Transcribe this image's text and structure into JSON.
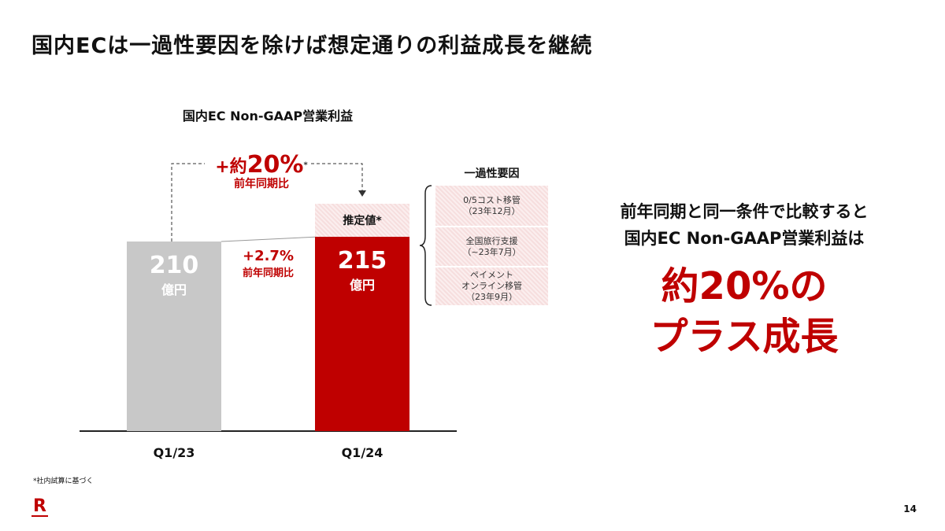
{
  "title": "国内ECは一過性要因を除けば想定通りの利益成長を継続",
  "chart_data": {
    "type": "bar",
    "title": "国内EC Non-GAAP営業利益",
    "categories": [
      "Q1/23",
      "Q1/24"
    ],
    "values": [
      210,
      215
    ],
    "value_labels": [
      "210",
      "215"
    ],
    "unit": "億円",
    "estimate_label": "推定値*",
    "estimate_total": 252,
    "ylim": [
      0,
      260
    ],
    "yoy_actual": {
      "value": "+2.7%",
      "label": "前年同期比"
    },
    "yoy_adjusted": {
      "prefix": "+約",
      "value": "20%",
      "mark": "*",
      "label": "前年同期比"
    },
    "colors": {
      "q123": "#c8c8c8",
      "q124": "#bf0000",
      "estimate": "#f8e4e4"
    }
  },
  "factors": {
    "title": "一過性要因",
    "items": [
      {
        "line1": "0/5コスト移管",
        "line2": "（23年12月）"
      },
      {
        "line1": "全国旅行支援",
        "line2": "（~23年7月）"
      },
      {
        "line1": "ペイメント",
        "line2": "オンライン移管",
        "line3": "（23年9月）"
      }
    ]
  },
  "message": {
    "line1": "前年同期と同一条件で比較すると",
    "line2": "国内EC Non-GAAP営業利益は",
    "big1": "約20%の",
    "big2": "プラス成長"
  },
  "footnote": "*社内試算に基づく",
  "logo": "R",
  "page_number": "14"
}
